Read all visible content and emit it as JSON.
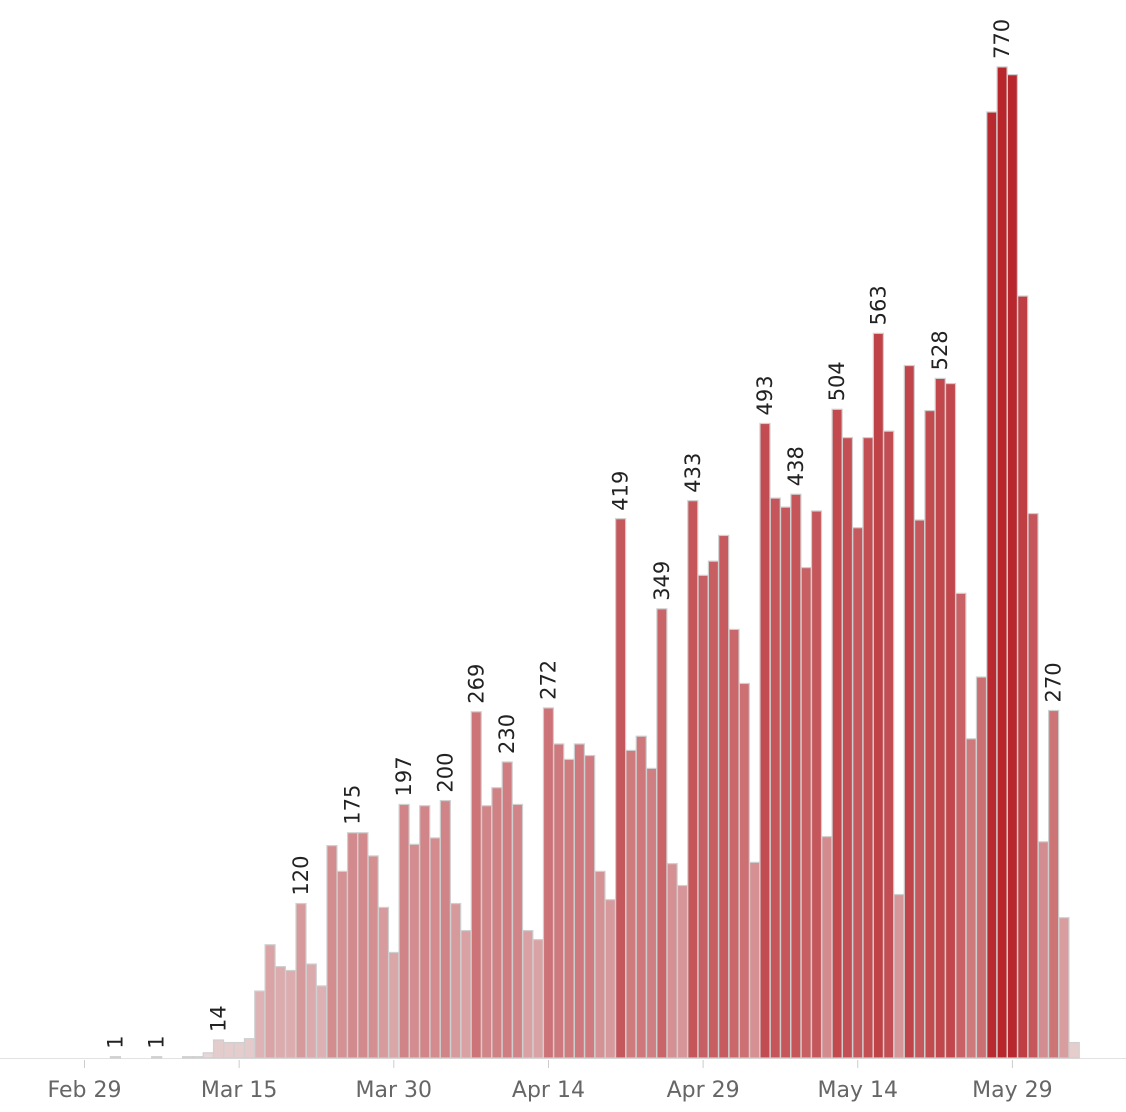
{
  "chart_data": {
    "type": "bar",
    "categories": [
      "Feb 29",
      null,
      null,
      null,
      null,
      null,
      null,
      null,
      null,
      null,
      null,
      null,
      null,
      null,
      null,
      "Mar 15",
      null,
      null,
      null,
      null,
      null,
      null,
      null,
      null,
      null,
      null,
      null,
      null,
      null,
      null,
      "Mar 30",
      null,
      null,
      null,
      null,
      null,
      null,
      null,
      null,
      null,
      null,
      null,
      null,
      null,
      null,
      "Apr 14",
      null,
      null,
      null,
      null,
      null,
      null,
      null,
      null,
      null,
      null,
      null,
      null,
      null,
      null,
      "Apr 29",
      null,
      null,
      null,
      null,
      null,
      null,
      null,
      null,
      null,
      null,
      null,
      null,
      null,
      null,
      "May 14",
      null,
      null,
      null,
      null,
      null,
      null,
      null,
      null,
      null,
      null,
      null,
      null,
      null,
      null,
      "May 29",
      null,
      null,
      null,
      null,
      null,
      null
    ],
    "values": [
      null,
      null,
      null,
      1,
      0,
      0,
      0,
      1,
      null,
      null,
      1,
      1,
      4,
      14,
      12,
      12,
      15,
      52,
      88,
      71,
      68,
      120,
      73,
      56,
      165,
      145,
      175,
      175,
      157,
      117,
      82,
      197,
      166,
      196,
      171,
      200,
      120,
      99,
      269,
      196,
      210,
      230,
      197,
      99,
      92,
      272,
      244,
      232,
      244,
      235,
      145,
      123,
      419,
      239,
      250,
      225,
      349,
      151,
      134,
      433,
      375,
      386,
      406,
      333,
      291,
      152,
      493,
      435,
      428,
      438,
      381,
      425,
      172,
      504,
      482,
      412,
      482,
      563,
      487,
      127,
      538,
      418,
      503,
      528,
      524,
      361,
      248,
      296,
      735,
      770,
      764,
      592,
      423,
      168,
      270,
      109,
      12
    ],
    "value_labels": [
      null,
      null,
      null,
      "1",
      null,
      null,
      null,
      "1",
      null,
      null,
      null,
      null,
      null,
      "14",
      null,
      null,
      null,
      null,
      null,
      null,
      null,
      "120",
      null,
      null,
      null,
      null,
      "175",
      null,
      null,
      null,
      null,
      "197",
      null,
      null,
      null,
      "200",
      null,
      null,
      "269",
      null,
      null,
      "230",
      null,
      null,
      null,
      "272",
      null,
      null,
      null,
      null,
      null,
      null,
      "419",
      null,
      null,
      null,
      "349",
      null,
      null,
      "433",
      null,
      null,
      null,
      null,
      null,
      null,
      "493",
      null,
      null,
      "438",
      null,
      null,
      null,
      "504",
      null,
      null,
      null,
      "563",
      null,
      null,
      null,
      null,
      null,
      "528",
      null,
      null,
      null,
      null,
      null,
      "770",
      null,
      null,
      null,
      null,
      "270",
      null,
      null
    ],
    "ylim": [
      0,
      822
    ],
    "color_range": [
      "#ebe5e5",
      "#b8262c"
    ],
    "bar_stroke": "#cfcfcf"
  }
}
